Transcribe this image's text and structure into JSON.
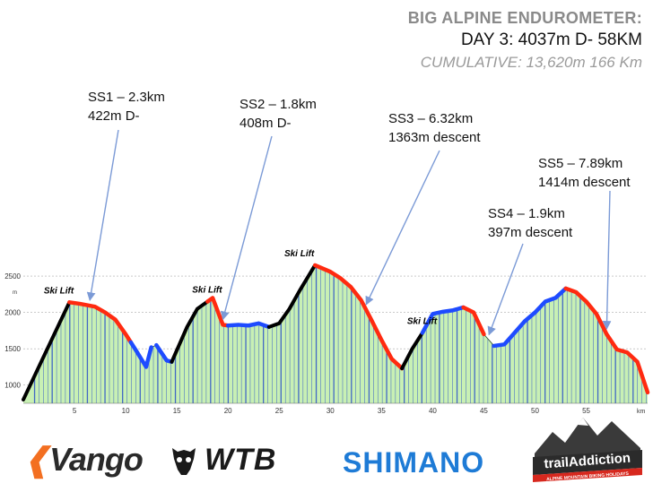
{
  "header": {
    "title": "BIG ALPINE ENDUROMETER:",
    "day": "DAY 3:  4037m D-   58KM",
    "cumulative": "CUMULATIVE: 13,620m  166 Km"
  },
  "stages": [
    {
      "name": "SS1 – 2.3km",
      "detail": "422m D-",
      "arrow_km": 6.5
    },
    {
      "name": "SS2 – 1.8km",
      "detail": "408m D-",
      "arrow_km": 19.5
    },
    {
      "name": "SS3 – 6.32km",
      "detail": "1363m descent",
      "arrow_km": 33.5
    },
    {
      "name": "SS4 – 1.9km",
      "detail": "397m descent",
      "arrow_km": 45.5
    },
    {
      "name": "SS5 – 7.89km",
      "detail": "1414m descent",
      "arrow_km": 57
    }
  ],
  "ski_lift_label": "Ski Lift",
  "logos": {
    "vango": "Vango",
    "wtb": "WTB",
    "shimano": "SHIMANO",
    "trailaddiction": "trailAddiction",
    "trailaddiction_tagline": "ALPINE MOUNTAIN BIKING HOLIDAYS"
  },
  "colors": {
    "fill": "#c8f0b4",
    "stripes": "#2a50c8",
    "ski_lift": "#000000",
    "descent": "#ff2a10",
    "transfer": "#1e4bff",
    "grid": "#aaaaaa"
  },
  "chart_data": {
    "type": "area",
    "title": "",
    "xlabel": "km",
    "ylabel": "m",
    "xlim": [
      0,
      61
    ],
    "ylim": [
      750,
      2600
    ],
    "x_ticks": [
      5,
      10,
      15,
      20,
      25,
      30,
      35,
      40,
      45,
      50,
      55
    ],
    "y_ticks": [
      1000,
      1500,
      2000,
      2500
    ],
    "grid": true,
    "profile": {
      "x": [
        0,
        4.5,
        5.5,
        7,
        8,
        9,
        10,
        11,
        12,
        12.5,
        13,
        14,
        14.5,
        15,
        16,
        17,
        18,
        18.5,
        19.5,
        20,
        21,
        22,
        23,
        24,
        25,
        26,
        27,
        28.5,
        30,
        31,
        32,
        33,
        34,
        35,
        36,
        37,
        38,
        39,
        40,
        41,
        42,
        43,
        44,
        45,
        46,
        47,
        48,
        49,
        50,
        51,
        52,
        53,
        54,
        55,
        56,
        57,
        58,
        59,
        60,
        61
      ],
      "y": [
        800,
        2140,
        2120,
        2080,
        2000,
        1900,
        1700,
        1480,
        1250,
        1520,
        1550,
        1340,
        1320,
        1480,
        1800,
        2050,
        2150,
        2200,
        1830,
        1820,
        1830,
        1820,
        1850,
        1800,
        1850,
        2050,
        2300,
        2650,
        2560,
        2470,
        2350,
        2170,
        1900,
        1620,
        1360,
        1230,
        1500,
        1720,
        1980,
        2010,
        2030,
        2070,
        2000,
        1700,
        1540,
        1560,
        1720,
        1880,
        2000,
        2150,
        2200,
        2330,
        2280,
        2150,
        1980,
        1700,
        1490,
        1450,
        1320,
        900
      ]
    },
    "segments": [
      {
        "type": "ski_lift",
        "x": [
          0,
          4.5
        ]
      },
      {
        "type": "descent",
        "x": [
          4.5,
          10.5
        ]
      },
      {
        "type": "transfer",
        "x": [
          10.5,
          12.5
        ]
      },
      {
        "type": "transfer",
        "x": [
          13,
          14.5
        ]
      },
      {
        "type": "ski_lift",
        "x": [
          14.5,
          18
        ]
      },
      {
        "type": "descent",
        "x": [
          18,
          20
        ]
      },
      {
        "type": "transfer",
        "x": [
          20,
          24
        ]
      },
      {
        "type": "ski_lift",
        "x": [
          24,
          28.5
        ]
      },
      {
        "type": "descent",
        "x": [
          28.5,
          37
        ]
      },
      {
        "type": "ski_lift",
        "x": [
          37,
          39
        ]
      },
      {
        "type": "transfer",
        "x": [
          39,
          43
        ]
      },
      {
        "type": "descent",
        "x": [
          43,
          45
        ]
      },
      {
        "type": "transfer",
        "x": [
          46,
          53
        ]
      },
      {
        "type": "descent",
        "x": [
          53,
          61
        ]
      }
    ],
    "ski_lift_labels_x": [
      2,
      16.5,
      25.5,
      37.5
    ]
  }
}
